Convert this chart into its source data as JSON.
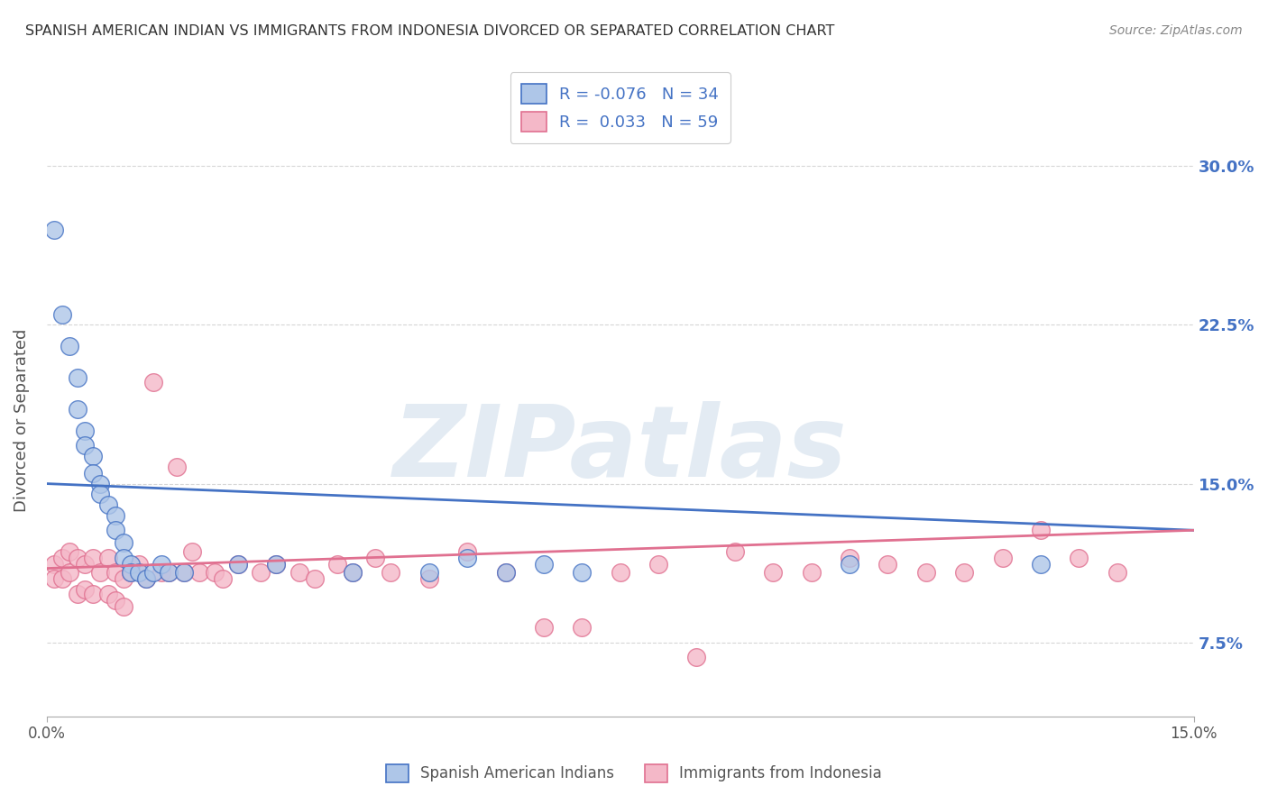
{
  "title": "SPANISH AMERICAN INDIAN VS IMMIGRANTS FROM INDONESIA DIVORCED OR SEPARATED CORRELATION CHART",
  "source": "Source: ZipAtlas.com",
  "ylabel": "Divorced or Separated",
  "yticks": [
    0.075,
    0.15,
    0.225,
    0.3
  ],
  "ytick_labels": [
    "7.5%",
    "15.0%",
    "22.5%",
    "30.0%"
  ],
  "xlim": [
    0.0,
    0.15
  ],
  "ylim": [
    0.04,
    0.32
  ],
  "watermark": "ZIPatlas",
  "legend_label_1": "R = -0.076   N = 34",
  "legend_label_2": "R =  0.033   N = 59",
  "blue_scatter_x": [
    0.001,
    0.002,
    0.003,
    0.004,
    0.004,
    0.005,
    0.005,
    0.006,
    0.006,
    0.007,
    0.007,
    0.008,
    0.009,
    0.009,
    0.01,
    0.01,
    0.011,
    0.011,
    0.012,
    0.013,
    0.014,
    0.015,
    0.016,
    0.018,
    0.025,
    0.03,
    0.04,
    0.05,
    0.055,
    0.06,
    0.065,
    0.07,
    0.105,
    0.13
  ],
  "blue_scatter_y": [
    0.27,
    0.23,
    0.215,
    0.2,
    0.185,
    0.175,
    0.168,
    0.163,
    0.155,
    0.15,
    0.145,
    0.14,
    0.135,
    0.128,
    0.122,
    0.115,
    0.112,
    0.108,
    0.108,
    0.105,
    0.108,
    0.112,
    0.108,
    0.108,
    0.112,
    0.112,
    0.108,
    0.108,
    0.115,
    0.108,
    0.112,
    0.108,
    0.112,
    0.112
  ],
  "pink_scatter_x": [
    0.001,
    0.001,
    0.002,
    0.002,
    0.003,
    0.003,
    0.004,
    0.004,
    0.005,
    0.005,
    0.006,
    0.006,
    0.007,
    0.008,
    0.008,
    0.009,
    0.009,
    0.01,
    0.01,
    0.011,
    0.012,
    0.013,
    0.014,
    0.015,
    0.016,
    0.017,
    0.018,
    0.019,
    0.02,
    0.022,
    0.023,
    0.025,
    0.028,
    0.03,
    0.033,
    0.035,
    0.038,
    0.04,
    0.043,
    0.045,
    0.05,
    0.055,
    0.06,
    0.065,
    0.07,
    0.075,
    0.08,
    0.085,
    0.09,
    0.095,
    0.1,
    0.105,
    0.11,
    0.115,
    0.12,
    0.125,
    0.13,
    0.135,
    0.14
  ],
  "pink_scatter_y": [
    0.112,
    0.105,
    0.115,
    0.105,
    0.118,
    0.108,
    0.115,
    0.098,
    0.112,
    0.1,
    0.115,
    0.098,
    0.108,
    0.115,
    0.098,
    0.108,
    0.095,
    0.105,
    0.092,
    0.108,
    0.112,
    0.105,
    0.198,
    0.108,
    0.108,
    0.158,
    0.108,
    0.118,
    0.108,
    0.108,
    0.105,
    0.112,
    0.108,
    0.112,
    0.108,
    0.105,
    0.112,
    0.108,
    0.115,
    0.108,
    0.105,
    0.118,
    0.108,
    0.082,
    0.082,
    0.108,
    0.112,
    0.068,
    0.118,
    0.108,
    0.108,
    0.115,
    0.112,
    0.108,
    0.108,
    0.115,
    0.128,
    0.115,
    0.108
  ],
  "blue_color": "#aec6e8",
  "pink_color": "#f4b8c8",
  "blue_edge": "#4472c4",
  "pink_edge": "#e07090",
  "trend_blue_color": "#4472c4",
  "trend_pink_color": "#e07090",
  "background_color": "#ffffff",
  "grid_color": "#cccccc",
  "title_color": "#333333",
  "blue_trend_start": 0.15,
  "blue_trend_end": 0.128,
  "pink_trend_start": 0.11,
  "pink_trend_end": 0.128
}
